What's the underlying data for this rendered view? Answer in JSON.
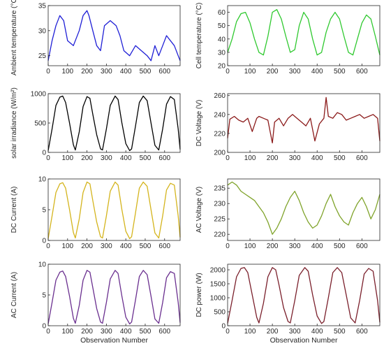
{
  "chart_data": [
    {
      "type": "line",
      "ylabel": "Ambient temperature (°C)",
      "xlabel": "",
      "xlim": [
        0,
        680
      ],
      "ylim": [
        23,
        35
      ],
      "x_ticks": [
        "0",
        "100",
        "200",
        "300",
        "400",
        "500",
        "600"
      ],
      "y_ticks": [
        "25",
        "30",
        "35"
      ],
      "color": "#1f1fd6",
      "series": [
        {
          "x": [
            0,
            20,
            40,
            60,
            80,
            100,
            130,
            160,
            180,
            200,
            210,
            230,
            250,
            270,
            290,
            320,
            350,
            370,
            390,
            420,
            450,
            480,
            510,
            530,
            550,
            570,
            590,
            610,
            630,
            650,
            670,
            680
          ],
          "values": [
            24,
            28,
            31,
            33,
            32,
            28,
            27,
            30,
            33,
            34,
            33,
            30,
            27,
            26,
            31,
            32,
            31,
            29,
            26,
            25,
            27,
            26,
            25,
            24,
            27,
            25,
            27,
            29,
            28,
            27,
            25,
            24
          ]
        }
      ]
    },
    {
      "type": "line",
      "ylabel": "Cell temperature (°C)",
      "xlabel": "",
      "xlim": [
        0,
        680
      ],
      "ylim": [
        20,
        65
      ],
      "x_ticks": [
        "0",
        "100",
        "200",
        "300",
        "400",
        "500",
        "600"
      ],
      "y_ticks": [
        "20",
        "30",
        "40",
        "50",
        "60"
      ],
      "color": "#2fc92f",
      "series": [
        {
          "x": [
            0,
            20,
            40,
            60,
            80,
            100,
            120,
            140,
            160,
            180,
            200,
            220,
            240,
            260,
            280,
            300,
            320,
            340,
            360,
            380,
            400,
            420,
            440,
            460,
            480,
            500,
            520,
            540,
            560,
            580,
            600,
            620,
            640,
            660,
            680
          ],
          "values": [
            30,
            40,
            53,
            59,
            60,
            52,
            40,
            30,
            28,
            42,
            60,
            62,
            55,
            42,
            30,
            32,
            50,
            60,
            55,
            40,
            28,
            30,
            45,
            55,
            60,
            55,
            42,
            30,
            28,
            40,
            52,
            58,
            55,
            42,
            28
          ]
        }
      ]
    },
    {
      "type": "line",
      "ylabel": "solar irradiance (W/m²)",
      "xlabel": "",
      "xlim": [
        0,
        680
      ],
      "ylim": [
        0,
        1000
      ],
      "x_ticks": [
        "0",
        "100",
        "200",
        "300",
        "400",
        "500",
        "600"
      ],
      "y_ticks": [
        "0",
        "500",
        "1000"
      ],
      "color": "#000000",
      "series": [
        {
          "x": [
            0,
            20,
            40,
            60,
            75,
            90,
            110,
            130,
            140,
            160,
            180,
            200,
            215,
            230,
            250,
            270,
            280,
            300,
            320,
            345,
            360,
            380,
            400,
            420,
            430,
            450,
            470,
            490,
            510,
            530,
            550,
            570,
            590,
            610,
            630,
            650,
            670,
            680
          ],
          "values": [
            30,
            400,
            800,
            940,
            960,
            850,
            500,
            130,
            40,
            350,
            780,
            950,
            920,
            650,
            300,
            60,
            40,
            400,
            800,
            960,
            900,
            500,
            150,
            30,
            60,
            450,
            850,
            960,
            880,
            500,
            120,
            40,
            400,
            820,
            950,
            900,
            400,
            50
          ]
        }
      ]
    },
    {
      "type": "line",
      "ylabel": "DC Voltage (V)",
      "xlabel": "",
      "xlim": [
        0,
        680
      ],
      "ylim": [
        200,
        262
      ],
      "x_ticks": [
        "0",
        "100",
        "200",
        "300",
        "400",
        "500",
        "600"
      ],
      "y_ticks": [
        "200",
        "220",
        "240",
        "260"
      ],
      "color": "#8b1a1a",
      "series": [
        {
          "x": [
            0,
            10,
            30,
            50,
            70,
            90,
            110,
            130,
            140,
            160,
            180,
            200,
            210,
            230,
            250,
            270,
            290,
            310,
            330,
            350,
            370,
            390,
            410,
            430,
            440,
            450,
            470,
            490,
            510,
            530,
            550,
            570,
            590,
            610,
            630,
            650,
            670,
            680
          ],
          "values": [
            215,
            235,
            238,
            234,
            232,
            236,
            222,
            236,
            238,
            236,
            234,
            210,
            232,
            236,
            228,
            236,
            240,
            236,
            232,
            228,
            236,
            212,
            230,
            236,
            258,
            238,
            236,
            242,
            240,
            234,
            236,
            238,
            240,
            236,
            238,
            240,
            236,
            212
          ]
        }
      ]
    },
    {
      "type": "line",
      "ylabel": "DC Current (A)",
      "xlabel": "",
      "xlim": [
        0,
        680
      ],
      "ylim": [
        0,
        10
      ],
      "x_ticks": [
        "0",
        "100",
        "200",
        "300",
        "400",
        "500",
        "600"
      ],
      "y_ticks": [
        "0",
        "5",
        "10"
      ],
      "color": "#d4b41c",
      "series": [
        {
          "x": [
            0,
            20,
            40,
            60,
            75,
            90,
            110,
            130,
            140,
            160,
            180,
            200,
            215,
            230,
            250,
            270,
            280,
            300,
            320,
            345,
            360,
            380,
            400,
            420,
            430,
            450,
            470,
            490,
            510,
            530,
            550,
            570,
            590,
            610,
            630,
            650,
            670,
            680
          ],
          "values": [
            0.3,
            4,
            7.8,
            9.2,
            9.4,
            8.5,
            5,
            1.3,
            0.4,
            3.5,
            7.8,
            9.5,
            9.2,
            6.5,
            3,
            0.6,
            0.4,
            4,
            8,
            9.5,
            9,
            5,
            1.5,
            0.3,
            0.6,
            4.5,
            8.5,
            9.5,
            8.8,
            5,
            1.2,
            0.4,
            4,
            8.2,
            9.3,
            9,
            4,
            0.5
          ]
        }
      ]
    },
    {
      "type": "line",
      "ylabel": "AC Voltage (V)",
      "xlabel": "",
      "xlim": [
        0,
        680
      ],
      "ylim": [
        218,
        238
      ],
      "x_ticks": [
        "0",
        "100",
        "200",
        "300",
        "400",
        "500",
        "600"
      ],
      "y_ticks": [
        "220",
        "225",
        "230",
        "235"
      ],
      "color": "#7fa32a",
      "series": [
        {
          "x": [
            0,
            20,
            40,
            60,
            80,
            100,
            120,
            140,
            160,
            180,
            200,
            220,
            240,
            260,
            280,
            300,
            320,
            340,
            360,
            380,
            400,
            420,
            440,
            460,
            480,
            500,
            520,
            540,
            560,
            580,
            600,
            620,
            640,
            660,
            680
          ],
          "values": [
            236,
            237,
            236,
            234,
            233,
            232,
            231,
            229,
            227,
            224,
            220,
            222,
            225,
            229,
            232,
            234,
            231,
            227,
            224,
            222,
            223,
            226,
            230,
            233,
            229,
            226,
            224,
            223,
            227,
            230,
            232,
            229,
            225,
            228,
            233
          ]
        }
      ]
    },
    {
      "type": "line",
      "ylabel": "AC Current (A)",
      "xlabel": "Observation Number",
      "xlim": [
        0,
        680
      ],
      "ylim": [
        0,
        10
      ],
      "x_ticks": [
        "0",
        "100",
        "200",
        "300",
        "400",
        "500",
        "600"
      ],
      "y_ticks": [
        "0",
        "5",
        "10"
      ],
      "color": "#6a2f8f",
      "series": [
        {
          "x": [
            0,
            20,
            40,
            60,
            75,
            90,
            110,
            130,
            140,
            160,
            180,
            200,
            215,
            230,
            250,
            270,
            280,
            300,
            320,
            345,
            360,
            380,
            400,
            420,
            430,
            450,
            470,
            490,
            510,
            530,
            550,
            570,
            590,
            610,
            630,
            650,
            670,
            680
          ],
          "values": [
            0.3,
            3.8,
            7.4,
            8.7,
            8.9,
            8,
            4.8,
            1.2,
            0.4,
            3.3,
            7.4,
            9,
            8.7,
            6.2,
            2.8,
            0.6,
            0.4,
            3.8,
            7.6,
            9,
            8.5,
            4.8,
            1.4,
            0.3,
            0.6,
            4.2,
            8,
            9,
            8.3,
            4.8,
            1.1,
            0.4,
            3.8,
            7.8,
            8.8,
            8.5,
            3.8,
            0.5
          ]
        }
      ]
    },
    {
      "type": "line",
      "ylabel": "DC power (W)",
      "xlabel": "Observation Number",
      "xlim": [
        0,
        680
      ],
      "ylim": [
        0,
        2200
      ],
      "x_ticks": [
        "0",
        "100",
        "200",
        "300",
        "400",
        "500",
        "600"
      ],
      "y_ticks": [
        "0",
        "500",
        "1000",
        "1500",
        "2000"
      ],
      "color": "#7a1f2b",
      "series": [
        {
          "x": [
            0,
            20,
            40,
            60,
            75,
            90,
            110,
            130,
            140,
            160,
            180,
            200,
            215,
            230,
            250,
            270,
            280,
            300,
            320,
            345,
            360,
            380,
            400,
            420,
            430,
            450,
            470,
            490,
            510,
            530,
            550,
            570,
            590,
            610,
            630,
            650,
            670,
            680
          ],
          "values": [
            80,
            900,
            1750,
            2050,
            2080,
            1900,
            1100,
            300,
            100,
            800,
            1750,
            2080,
            2000,
            1450,
            650,
            150,
            100,
            900,
            1800,
            2080,
            1950,
            1100,
            350,
            80,
            150,
            1000,
            1900,
            2080,
            1900,
            1100,
            280,
            100,
            900,
            1850,
            2050,
            1950,
            900,
            120
          ]
        }
      ]
    }
  ]
}
